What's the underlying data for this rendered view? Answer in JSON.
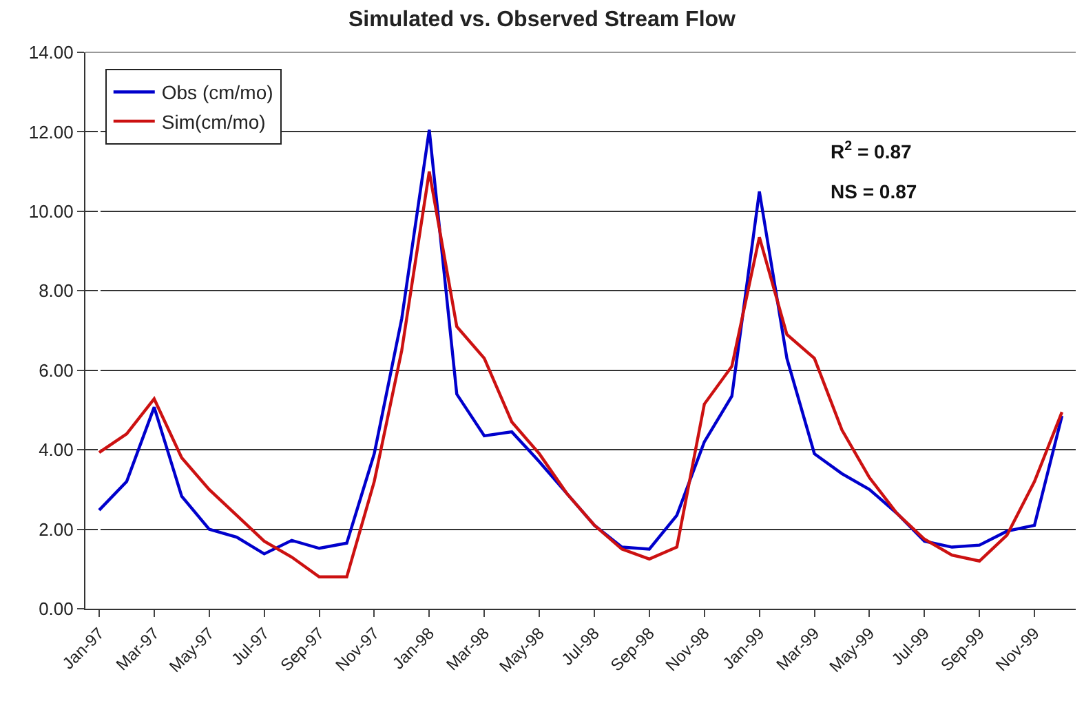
{
  "chart_data": {
    "type": "line",
    "title": "Simulated vs. Observed Stream Flow",
    "categories": [
      "Jan-97",
      null,
      "Mar-97",
      null,
      "May-97",
      null,
      "Jul-97",
      null,
      "Sep-97",
      null,
      "Nov-97",
      null,
      "Jan-98",
      null,
      "Mar-98",
      null,
      "May-98",
      null,
      "Jul-98",
      null,
      "Sep-98",
      null,
      "Nov-98",
      null,
      "Jan-99",
      null,
      "Mar-99",
      null,
      "May-99",
      null,
      "Jul-99",
      null,
      "Sep-99",
      null,
      "Nov-99",
      null
    ],
    "series": [
      {
        "name": "Obs (cm/mo)",
        "color": "#0000cc",
        "values": [
          2.48,
          3.2,
          5.07,
          2.83,
          2.0,
          1.8,
          1.38,
          1.72,
          1.52,
          1.65,
          3.9,
          7.3,
          12.05,
          5.4,
          4.35,
          4.45,
          3.7,
          2.9,
          2.1,
          1.55,
          1.5,
          2.35,
          4.2,
          5.35,
          10.5,
          6.3,
          3.9,
          3.4,
          3.0,
          2.4,
          1.7,
          1.55,
          1.6,
          1.95,
          2.1,
          4.85
        ]
      },
      {
        "name": "Sim(cm/mo)",
        "color": "#cc1111",
        "values": [
          3.93,
          4.4,
          5.28,
          3.8,
          3.0,
          2.35,
          1.7,
          1.3,
          0.8,
          0.8,
          3.2,
          6.5,
          11.0,
          7.1,
          6.3,
          4.7,
          3.9,
          2.9,
          2.1,
          1.5,
          1.25,
          1.55,
          5.15,
          6.1,
          9.35,
          6.9,
          6.3,
          4.5,
          3.3,
          2.4,
          1.75,
          1.35,
          1.2,
          1.85,
          3.2,
          4.95
        ]
      }
    ],
    "ylim": [
      0,
      14
    ],
    "yticks": [
      {
        "value": 0,
        "label": "0.00"
      },
      {
        "value": 2,
        "label": "2.00"
      },
      {
        "value": 4,
        "label": "4.00"
      },
      {
        "value": 6,
        "label": "6.00"
      },
      {
        "value": 8,
        "label": "8.00"
      },
      {
        "value": 10,
        "label": "10.00"
      },
      {
        "value": 12,
        "label": "12.00"
      },
      {
        "value": 14,
        "label": "14.00"
      }
    ],
    "annotations": [
      "R$^{2}$ = 0.87",
      "NS = 0.87"
    ],
    "grid": "y",
    "legend": "top left",
    "marker": "none",
    "line_style": "solid"
  }
}
